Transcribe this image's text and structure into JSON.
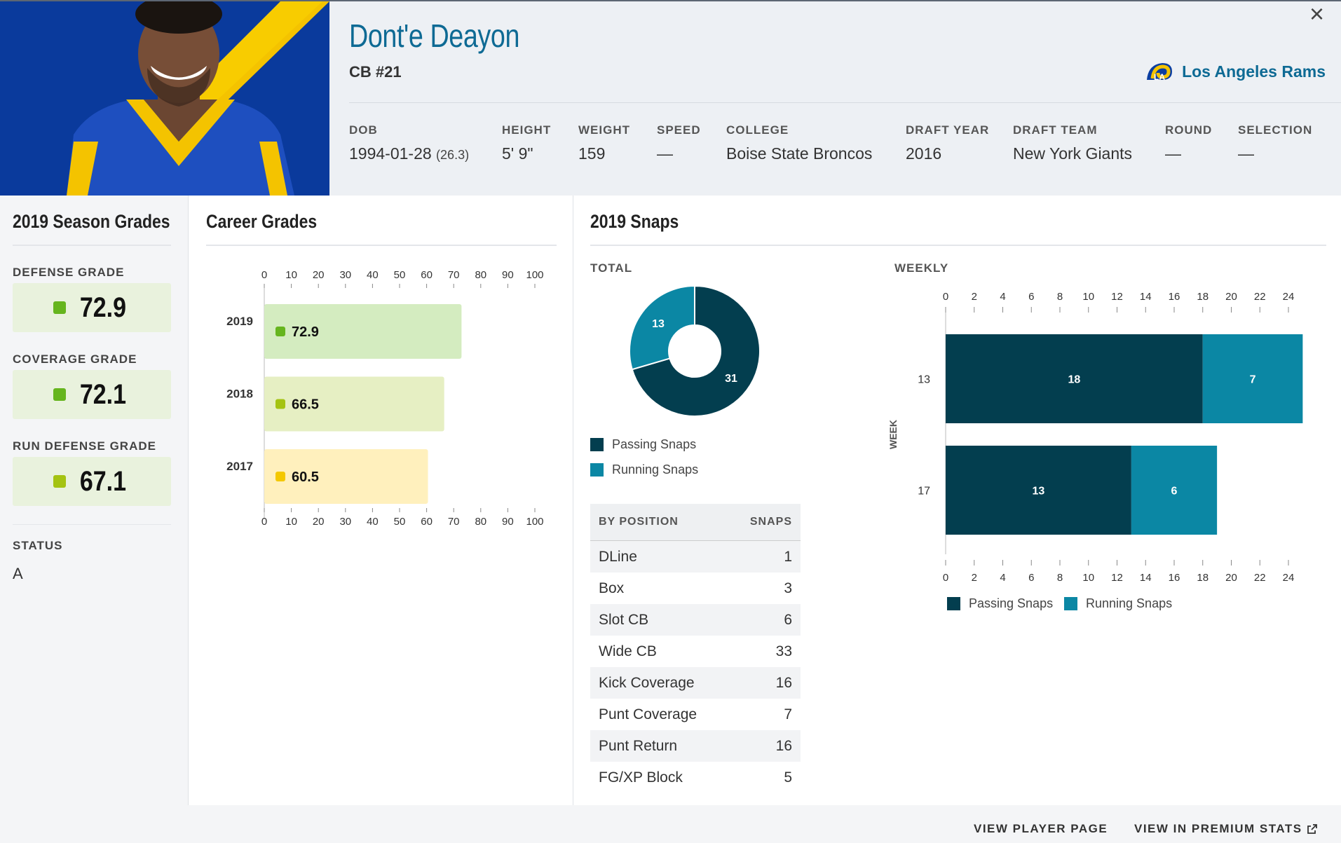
{
  "player": {
    "name": "Dont'e Deayon",
    "position": "CB #21",
    "team": "Los Angeles Rams"
  },
  "bio": {
    "dob_label": "DOB",
    "dob": "1994-01-28",
    "age": "(26.3)",
    "height_label": "HEIGHT",
    "height": "5' 9\"",
    "weight_label": "WEIGHT",
    "weight": "159",
    "speed_label": "SPEED",
    "speed": "—",
    "college_label": "COLLEGE",
    "college": "Boise State Broncos",
    "draft_year_label": "DRAFT YEAR",
    "draft_year": "2016",
    "draft_team_label": "DRAFT TEAM",
    "draft_team": "New York Giants",
    "round_label": "ROUND",
    "round": "—",
    "selection_label": "SELECTION",
    "selection": "—"
  },
  "season": {
    "title": "2019 Season Grades",
    "defense_label": "DEFENSE GRADE",
    "defense": "72.9",
    "coverage_label": "COVERAGE GRADE",
    "coverage": "72.1",
    "run_defense_label": "RUN DEFENSE GRADE",
    "run_defense": "67.1",
    "status_label": "STATUS",
    "status": "A"
  },
  "career": {
    "title": "Career Grades"
  },
  "snaps": {
    "title": "2019 Snaps",
    "total_label": "TOTAL",
    "weekly_label": "WEEKLY",
    "legend_passing": "Passing Snaps",
    "legend_running": "Running Snaps",
    "table_header_position": "BY POSITION",
    "table_header_snaps": "SNAPS",
    "by_position": [
      {
        "position": "DLine",
        "snaps": "1"
      },
      {
        "position": "Box",
        "snaps": "3"
      },
      {
        "position": "Slot CB",
        "snaps": "6"
      },
      {
        "position": "Wide CB",
        "snaps": "33"
      },
      {
        "position": "Kick Coverage",
        "snaps": "16"
      },
      {
        "position": "Punt Coverage",
        "snaps": "7"
      },
      {
        "position": "Punt Return",
        "snaps": "16"
      },
      {
        "position": "FG/XP Block",
        "snaps": "5"
      }
    ]
  },
  "footer": {
    "view_player": "VIEW PLAYER PAGE",
    "view_premium": "VIEW IN PREMIUM STATS"
  },
  "colors": {
    "passing": "#033e4f",
    "running": "#0b87a4",
    "accent": "#0e6a94",
    "grade_green": "#66b51e",
    "grade_lime": "#a4c312",
    "grade_yellow": "#f4c800"
  },
  "chart_data": [
    {
      "type": "bar",
      "orientation": "horizontal",
      "categories": [
        "2019",
        "2018",
        "2017"
      ],
      "values": [
        72.9,
        66.5,
        60.5
      ],
      "bar_colors": [
        "#d4ecc0",
        "#e6efc3",
        "#fff0bd"
      ],
      "dot_colors": [
        "#66b51e",
        "#a4c312",
        "#f4c800"
      ],
      "xlim": [
        0,
        100
      ],
      "xticks": [
        0,
        10,
        20,
        30,
        40,
        50,
        60,
        70,
        80,
        90,
        100
      ]
    },
    {
      "type": "pie",
      "donut": true,
      "labels": [
        "Passing Snaps",
        "Running Snaps"
      ],
      "values": [
        31,
        13
      ]
    },
    {
      "type": "bar",
      "orientation": "horizontal",
      "stacked": true,
      "y_axis_label": "WEEK",
      "categories": [
        "13",
        "17"
      ],
      "series": [
        {
          "name": "Passing Snaps",
          "values": [
            18,
            13
          ]
        },
        {
          "name": "Running Snaps",
          "values": [
            7,
            6
          ]
        }
      ],
      "xlim": [
        0,
        25
      ],
      "xticks": [
        0,
        2,
        4,
        6,
        8,
        10,
        12,
        14,
        16,
        18,
        20,
        22,
        24
      ]
    }
  ]
}
